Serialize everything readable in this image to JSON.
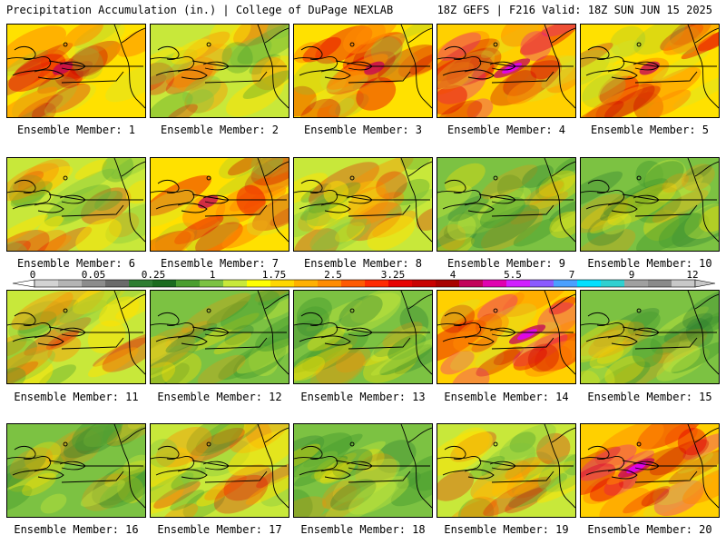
{
  "header": {
    "left": "Precipitation Accumulation (in.) | College of DuPage NEXLAB",
    "right": "18Z GEFS | F216 Valid: 18Z SUN JUN 15 2025"
  },
  "colors": {
    "scale": [
      "#d3d3d3",
      "#b4b4b4",
      "#8c8c8c",
      "#6a6a6a",
      "#2e7d32",
      "#1b6b1f",
      "#4a9e2f",
      "#7cc242",
      "#c8e83a",
      "#ffff00",
      "#ffd700",
      "#ffb000",
      "#ff8c00",
      "#ff5a00",
      "#ff2a00",
      "#e60000",
      "#c80000",
      "#a80000",
      "#c2005a",
      "#e000b0",
      "#d020ff",
      "#8a5aff",
      "#4aa0ff",
      "#00e0ff",
      "#30d0d0",
      "#a0a0a0",
      "#8a8a8a",
      "#c8c8c8"
    ]
  },
  "colorbar": {
    "labels": [
      "0",
      "0.05",
      "0.25",
      "1",
      "1.75",
      "2.5",
      "3.25",
      "4",
      "5.5",
      "7",
      "9",
      "12"
    ]
  },
  "members": [
    {
      "label": "Ensemble Member: 1",
      "theme": "red"
    },
    {
      "label": "Ensemble Member: 2",
      "theme": "mixed"
    },
    {
      "label": "Ensemble Member: 3",
      "theme": "red"
    },
    {
      "label": "Ensemble Member: 4",
      "theme": "magenta"
    },
    {
      "label": "Ensemble Member: 5",
      "theme": "red"
    },
    {
      "label": "Ensemble Member: 6",
      "theme": "mixed"
    },
    {
      "label": "Ensemble Member: 7",
      "theme": "red"
    },
    {
      "label": "Ensemble Member: 8",
      "theme": "mixed"
    },
    {
      "label": "Ensemble Member: 9",
      "theme": "green"
    },
    {
      "label": "Ensemble Member: 10",
      "theme": "green"
    },
    {
      "label": "Ensemble Member: 11",
      "theme": "mixed"
    },
    {
      "label": "Ensemble Member: 12",
      "theme": "green"
    },
    {
      "label": "Ensemble Member: 13",
      "theme": "green"
    },
    {
      "label": "Ensemble Member: 14",
      "theme": "magenta"
    },
    {
      "label": "Ensemble Member: 15",
      "theme": "green"
    },
    {
      "label": "Ensemble Member: 16",
      "theme": "green"
    },
    {
      "label": "Ensemble Member: 17",
      "theme": "mixed"
    },
    {
      "label": "Ensemble Member: 18",
      "theme": "green"
    },
    {
      "label": "Ensemble Member: 19",
      "theme": "mixed"
    },
    {
      "label": "Ensemble Member: 20",
      "theme": "magenta"
    }
  ]
}
